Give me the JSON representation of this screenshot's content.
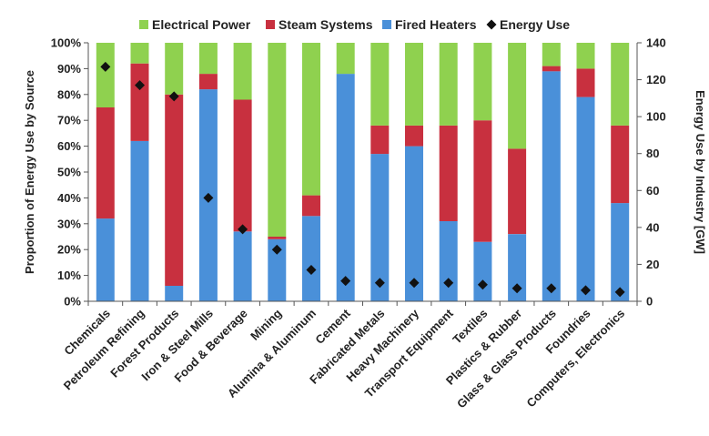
{
  "chart_data": {
    "type": "bar",
    "stacked": true,
    "normalized": true,
    "categories": [
      "Chemicals",
      "Petroleum Refining",
      "Forest Products",
      "Iron & Steel Mills",
      "Food & Beverage",
      "Mining",
      "Alumina & Aluminum",
      "Cement",
      "Fabricated Metals",
      "Heavy Machinery",
      "Transport Equipment",
      "Textiles",
      "Plastics & Rubber",
      "Glass & Glass Products",
      "Foundries",
      "Computers, Electronics"
    ],
    "series": [
      {
        "name": "Fired Heaters",
        "color": "#4A90D9",
        "values": [
          32,
          62,
          6,
          82,
          27,
          24,
          33,
          88,
          57,
          60,
          31,
          23,
          26,
          89,
          79,
          38
        ]
      },
      {
        "name": "Steam Systems",
        "color": "#C8303F",
        "values": [
          43,
          30,
          74,
          6,
          51,
          1,
          8,
          0,
          11,
          8,
          37,
          47,
          33,
          2,
          11,
          30
        ]
      },
      {
        "name": "Electrical Power",
        "color": "#8FD14F",
        "values": [
          25,
          8,
          20,
          12,
          22,
          75,
          59,
          12,
          32,
          32,
          32,
          30,
          41,
          9,
          10,
          32
        ]
      }
    ],
    "energy_use": {
      "name": "Energy Use",
      "color": "#111111",
      "values": [
        127,
        117,
        111,
        56,
        39,
        28,
        17,
        11,
        10,
        10,
        10,
        9,
        7,
        7,
        6,
        5
      ]
    },
    "legend": [
      "Electrical Power",
      "Steam Systems",
      "Fired Heaters",
      "Energy Use"
    ],
    "legend_position": "top",
    "ylabel": "Proportion of Energy Use by Source",
    "y2label": "Energy Use by Industry [GW]",
    "ylim": [
      0,
      100
    ],
    "yticks": [
      "0%",
      "10%",
      "20%",
      "30%",
      "40%",
      "50%",
      "60%",
      "70%",
      "80%",
      "90%",
      "100%"
    ],
    "y2lim": [
      0,
      140
    ],
    "y2ticks": [
      "0",
      "20",
      "40",
      "60",
      "80",
      "100",
      "120",
      "140"
    ],
    "grid": false
  }
}
